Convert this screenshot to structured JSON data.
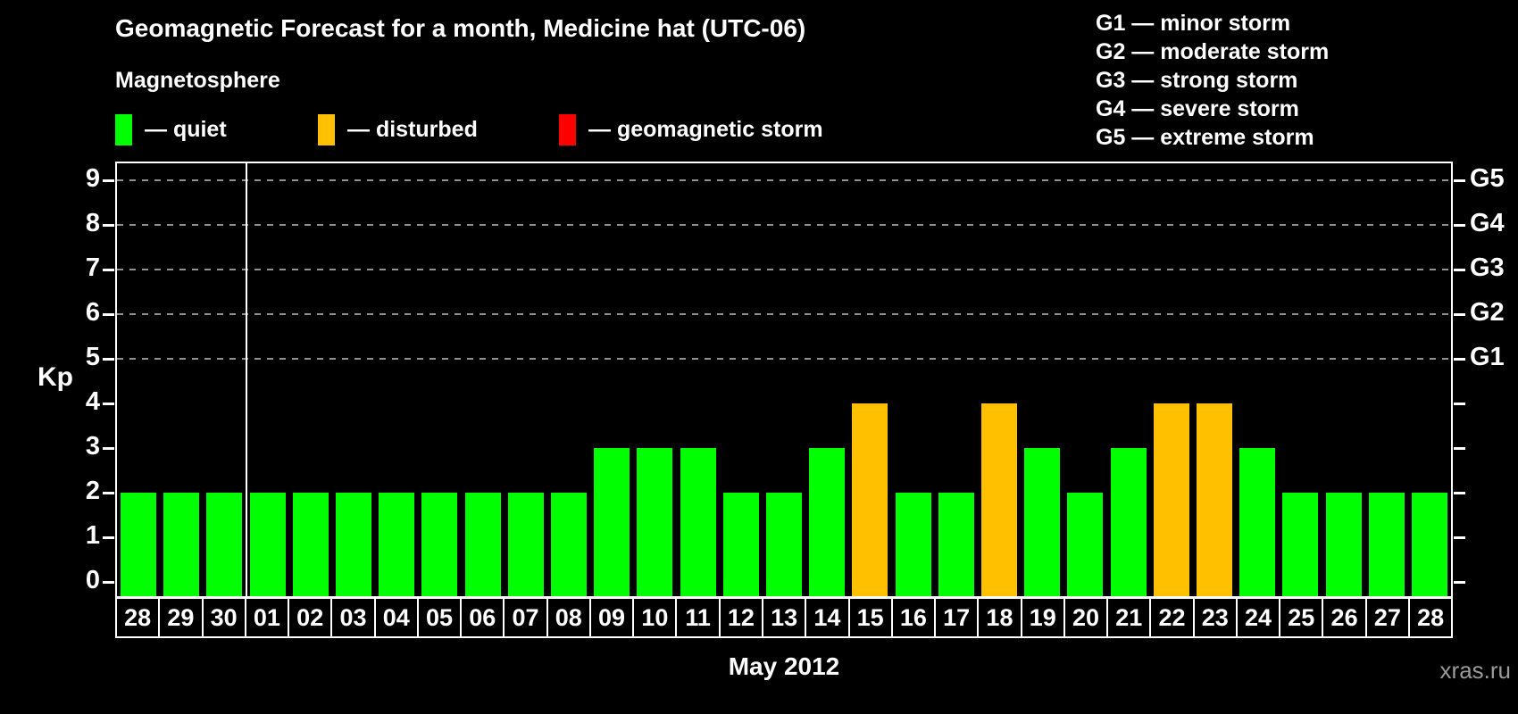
{
  "header": {
    "title": "Geomagnetic Forecast for a month, Medicine hat (UTC-06)",
    "subtitle": "Magnetosphere",
    "legend": [
      {
        "name": "quiet",
        "label": "— quiet",
        "color": "#00FF00"
      },
      {
        "name": "disturbed",
        "label": "— disturbed",
        "color": "#FFC000"
      },
      {
        "name": "storm",
        "label": "— geomagnetic storm",
        "color": "#FF0000"
      }
    ],
    "g_legend": [
      "G1 — minor storm",
      "G2 — moderate storm",
      "G3 — strong storm",
      "G4 — severe storm",
      "G5 — extreme storm"
    ]
  },
  "chart_data": {
    "type": "bar",
    "title": "Geomagnetic Forecast for a month, Medicine hat (UTC-06)",
    "xlabel": "May 2012",
    "ylabel": "Kp",
    "ylim": [
      0,
      9
    ],
    "yticks": [
      0,
      1,
      2,
      3,
      4,
      5,
      6,
      7,
      8,
      9
    ],
    "grid_kp": [
      5,
      6,
      7,
      8,
      9
    ],
    "g_levels": [
      {
        "kp": 5,
        "label": "G1"
      },
      {
        "kp": 6,
        "label": "G2"
      },
      {
        "kp": 7,
        "label": "G3"
      },
      {
        "kp": 8,
        "label": "G4"
      },
      {
        "kp": 9,
        "label": "G5"
      }
    ],
    "categories": [
      "28",
      "29",
      "30",
      "01",
      "02",
      "03",
      "04",
      "05",
      "06",
      "07",
      "08",
      "09",
      "10",
      "11",
      "12",
      "13",
      "14",
      "15",
      "16",
      "17",
      "18",
      "19",
      "20",
      "21",
      "22",
      "23",
      "24",
      "25",
      "26",
      "27",
      "28"
    ],
    "values": [
      2,
      2,
      2,
      2,
      2,
      2,
      2,
      2,
      2,
      2,
      2,
      3,
      3,
      3,
      2,
      2,
      3,
      4,
      2,
      2,
      4,
      3,
      2,
      3,
      4,
      4,
      3,
      2,
      2,
      2,
      2
    ],
    "month_boundary_index": 3,
    "level_colors": {
      "quiet": "#00FF00",
      "disturbed": "#FFC000",
      "storm": "#FF0000"
    },
    "level_thresholds": {
      "disturbed_min_kp": 4,
      "storm_min_kp": 5
    },
    "legend_position": "top",
    "grid": "dashed horizontal lines at Kp 5-9 (G1-G5)"
  },
  "footer": {
    "xaxis_title": "May 2012",
    "watermark": "xras.ru"
  }
}
